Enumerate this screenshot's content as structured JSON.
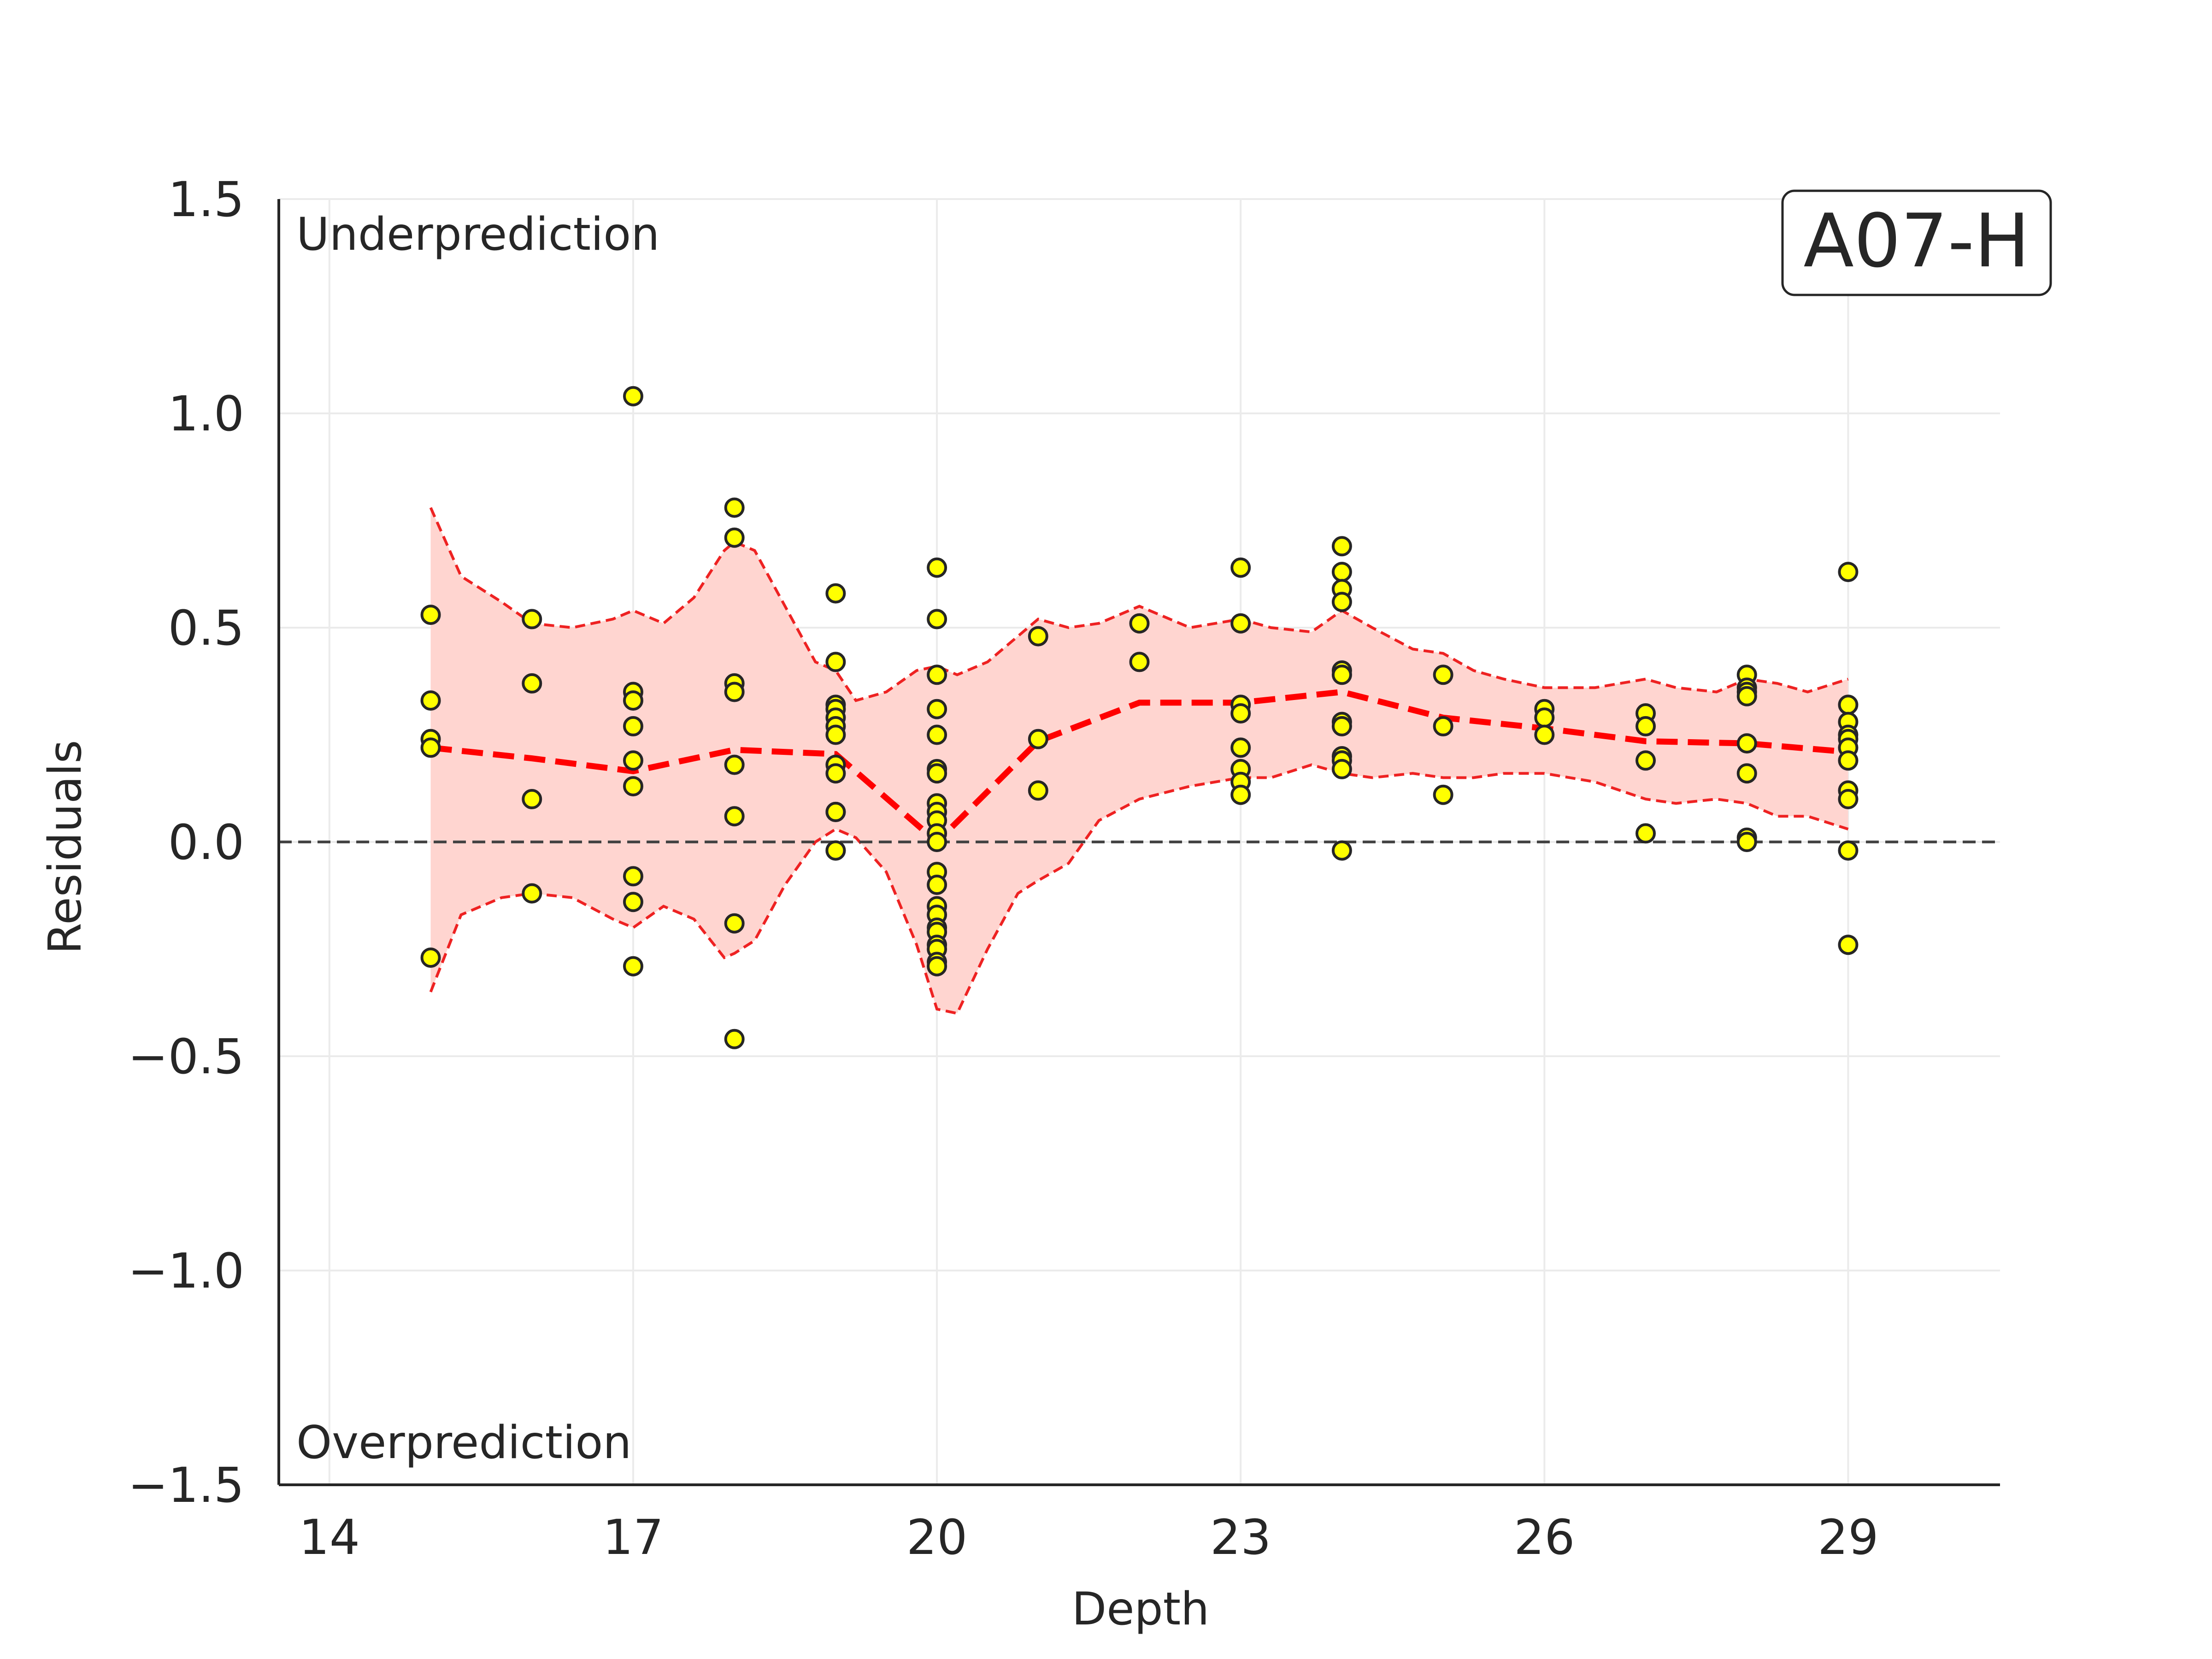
{
  "chart_data": {
    "type": "scatter",
    "xlabel": "Depth",
    "ylabel": "Residuals",
    "xlim": [
      13.5,
      30.5
    ],
    "ylim": [
      -1.5,
      1.5
    ],
    "xticks": [
      14,
      17,
      20,
      23,
      26,
      29
    ],
    "yticks": [
      -1.5,
      -1.0,
      -0.5,
      0.0,
      0.5,
      1.0,
      1.5
    ],
    "ytick_labels": [
      "−1.5",
      "−1.0",
      "−0.5",
      "0.0",
      "0.5",
      "1.0",
      "1.5"
    ],
    "grid": true,
    "reference_line": 0.0,
    "annotations": {
      "top_left": "Underprediction",
      "bottom_left": "Overprediction",
      "panel_label": "A07-H"
    },
    "colors": {
      "points_fill": "#ffff00",
      "points_edge": "#262626",
      "trend": "#ff0000",
      "band_fill": "#ffd5d0",
      "band_edge": "#ee2222",
      "zero_line": "#444444",
      "grid": "#ebebeb"
    },
    "series": [
      {
        "name": "residuals",
        "kind": "scatter",
        "points": [
          [
            15,
            0.53
          ],
          [
            15,
            0.33
          ],
          [
            15,
            0.24
          ],
          [
            15,
            0.22
          ],
          [
            15,
            -0.27
          ],
          [
            16,
            0.52
          ],
          [
            16,
            0.37
          ],
          [
            16,
            0.1
          ],
          [
            16,
            -0.12
          ],
          [
            17,
            1.04
          ],
          [
            17,
            0.35
          ],
          [
            17,
            0.33
          ],
          [
            17,
            0.27
          ],
          [
            17,
            0.19
          ],
          [
            17,
            0.13
          ],
          [
            17,
            -0.08
          ],
          [
            17,
            -0.14
          ],
          [
            17,
            -0.29
          ],
          [
            18,
            0.78
          ],
          [
            18,
            0.71
          ],
          [
            18,
            0.37
          ],
          [
            18,
            0.35
          ],
          [
            18,
            0.18
          ],
          [
            18,
            0.06
          ],
          [
            18,
            -0.19
          ],
          [
            18,
            -0.46
          ],
          [
            19,
            0.58
          ],
          [
            19,
            0.42
          ],
          [
            19,
            0.32
          ],
          [
            19,
            0.31
          ],
          [
            19,
            0.29
          ],
          [
            19,
            0.27
          ],
          [
            19,
            0.25
          ],
          [
            19,
            0.18
          ],
          [
            19,
            0.16
          ],
          [
            19,
            0.07
          ],
          [
            19,
            0.07
          ],
          [
            19,
            -0.02
          ],
          [
            19,
            -0.02
          ],
          [
            20,
            0.64
          ],
          [
            20,
            0.52
          ],
          [
            20,
            0.39
          ],
          [
            20,
            0.31
          ],
          [
            20,
            0.25
          ],
          [
            20,
            0.17
          ],
          [
            20,
            0.16
          ],
          [
            20,
            0.09
          ],
          [
            20,
            0.07
          ],
          [
            20,
            0.05
          ],
          [
            20,
            0.02
          ],
          [
            20,
            0.0
          ],
          [
            20,
            -0.07
          ],
          [
            20,
            -0.1
          ],
          [
            20,
            -0.15
          ],
          [
            20,
            -0.17
          ],
          [
            20,
            -0.2
          ],
          [
            20,
            -0.21
          ],
          [
            20,
            -0.24
          ],
          [
            20,
            -0.25
          ],
          [
            20,
            -0.28
          ],
          [
            20,
            -0.29
          ],
          [
            21,
            0.48
          ],
          [
            21,
            0.24
          ],
          [
            21,
            0.12
          ],
          [
            22,
            0.51
          ],
          [
            22,
            0.42
          ],
          [
            23,
            0.64
          ],
          [
            23,
            0.51
          ],
          [
            23,
            0.32
          ],
          [
            23,
            0.3
          ],
          [
            23,
            0.22
          ],
          [
            23,
            0.17
          ],
          [
            23,
            0.14
          ],
          [
            23,
            0.11
          ],
          [
            24,
            0.69
          ],
          [
            24,
            0.63
          ],
          [
            24,
            0.59
          ],
          [
            24,
            0.56
          ],
          [
            24,
            0.4
          ],
          [
            24,
            0.39
          ],
          [
            24,
            0.28
          ],
          [
            24,
            0.27
          ],
          [
            24,
            0.2
          ],
          [
            24,
            0.19
          ],
          [
            24,
            0.17
          ],
          [
            24,
            -0.02
          ],
          [
            25,
            0.39
          ],
          [
            25,
            0.27
          ],
          [
            25,
            0.11
          ],
          [
            26,
            0.31
          ],
          [
            26,
            0.29
          ],
          [
            26,
            0.25
          ],
          [
            27,
            0.3
          ],
          [
            27,
            0.27
          ],
          [
            27,
            0.19
          ],
          [
            27,
            0.02
          ],
          [
            28,
            0.39
          ],
          [
            28,
            0.36
          ],
          [
            28,
            0.35
          ],
          [
            28,
            0.34
          ],
          [
            28,
            0.23
          ],
          [
            28,
            0.16
          ],
          [
            28,
            0.01
          ],
          [
            28,
            0.0
          ],
          [
            29,
            0.63
          ],
          [
            29,
            0.32
          ],
          [
            29,
            0.28
          ],
          [
            29,
            0.25
          ],
          [
            29,
            0.24
          ],
          [
            29,
            0.22
          ],
          [
            29,
            0.19
          ],
          [
            29,
            0.12
          ],
          [
            29,
            0.1
          ],
          [
            29,
            -0.02
          ],
          [
            29,
            -0.24
          ]
        ]
      },
      {
        "name": "trend",
        "kind": "line",
        "style": "dashed",
        "x": [
          15,
          16,
          17,
          18,
          19,
          20,
          21,
          22,
          23,
          24,
          25,
          26,
          27,
          28,
          29
        ],
        "y": [
          0.22,
          0.195,
          0.165,
          0.215,
          0.205,
          0.0,
          0.235,
          0.325,
          0.325,
          0.35,
          0.29,
          0.265,
          0.235,
          0.23,
          0.21
        ]
      },
      {
        "name": "band",
        "kind": "area",
        "x": [
          15,
          15.3,
          15.7,
          16,
          16.4,
          16.8,
          17,
          17.3,
          17.6,
          17.9,
          18,
          18.2,
          18.5,
          18.8,
          19,
          19.2,
          19.5,
          19.8,
          20,
          20.2,
          20.5,
          20.8,
          21,
          21.3,
          21.6,
          22,
          22.5,
          23,
          23.3,
          23.7,
          24,
          24.3,
          24.7,
          25,
          25.3,
          25.6,
          26,
          26.5,
          27,
          27.3,
          27.7,
          28,
          28.3,
          28.6,
          29
        ],
        "upper": [
          0.78,
          0.62,
          0.56,
          0.51,
          0.5,
          0.52,
          0.54,
          0.51,
          0.57,
          0.68,
          0.7,
          0.68,
          0.55,
          0.42,
          0.4,
          0.33,
          0.35,
          0.4,
          0.41,
          0.39,
          0.42,
          0.48,
          0.52,
          0.5,
          0.51,
          0.55,
          0.5,
          0.52,
          0.5,
          0.49,
          0.54,
          0.5,
          0.45,
          0.44,
          0.4,
          0.38,
          0.36,
          0.36,
          0.38,
          0.36,
          0.35,
          0.38,
          0.37,
          0.35,
          0.38
        ],
        "lower": [
          -0.35,
          -0.17,
          -0.13,
          -0.12,
          -0.13,
          -0.18,
          -0.2,
          -0.15,
          -0.18,
          -0.27,
          -0.26,
          -0.23,
          -0.1,
          0.0,
          0.03,
          0.01,
          -0.07,
          -0.24,
          -0.39,
          -0.4,
          -0.25,
          -0.12,
          -0.09,
          -0.05,
          0.05,
          0.1,
          0.13,
          0.15,
          0.15,
          0.18,
          0.16,
          0.15,
          0.16,
          0.15,
          0.15,
          0.16,
          0.16,
          0.14,
          0.1,
          0.09,
          0.1,
          0.09,
          0.06,
          0.06,
          0.03
        ]
      }
    ]
  }
}
